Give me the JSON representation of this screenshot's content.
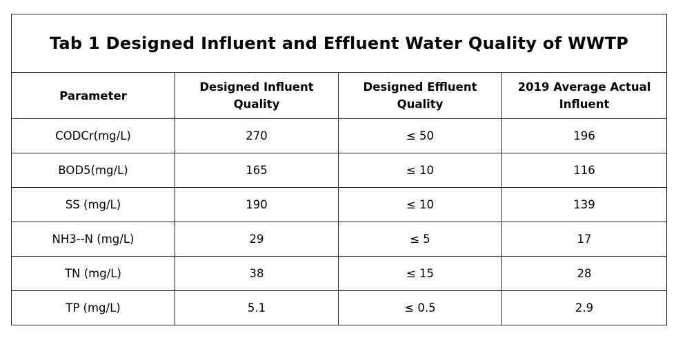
{
  "header": {
    "title": "Tab 1 Designed Influent and Effluent Water Quality of WWTP"
  },
  "table": {
    "columns": [
      "Parameter",
      "Designed Influent Quality",
      "Designed Effluent Quality",
      "2019 Average Actual Influent"
    ],
    "rows": [
      [
        "CODCr(mg/L)",
        270,
        "≤ 50",
        196
      ],
      [
        "BOD5(mg/L)",
        165,
        "≤ 10",
        116
      ],
      [
        "SS (mg/L)",
        190,
        "≤ 10",
        139
      ],
      [
        "NH3--N (mg/L)",
        29,
        "≤ 5",
        17
      ],
      [
        "TN (mg/L)",
        38,
        "≤ 15",
        28
      ],
      [
        "TP (mg/L)",
        5.1,
        "≤ 0.5",
        2.9
      ]
    ]
  }
}
